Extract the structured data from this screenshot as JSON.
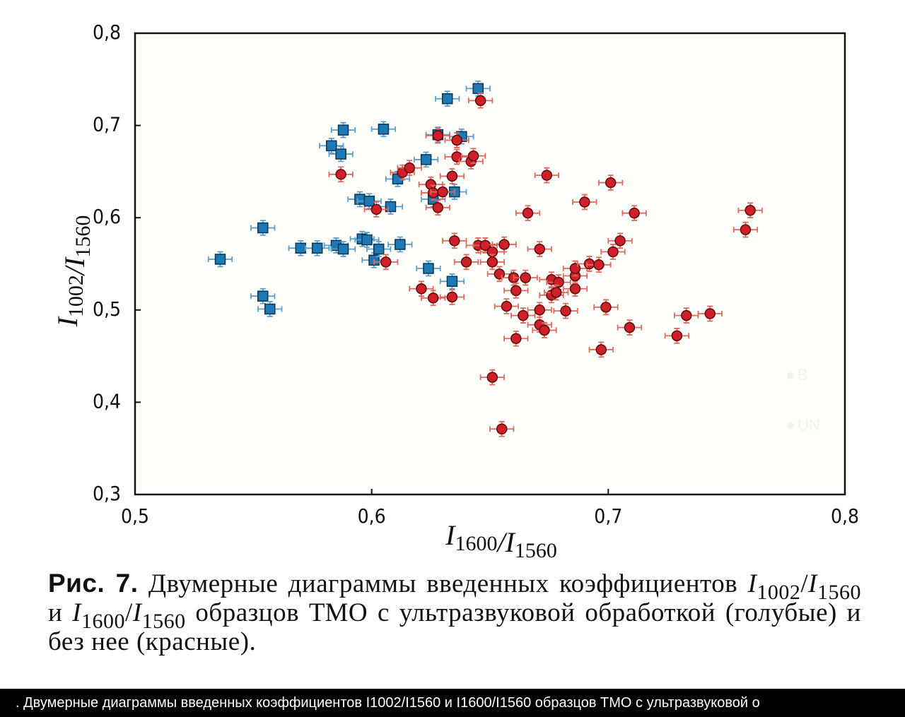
{
  "chart_data": {
    "type": "scatter",
    "xlabel": "I1600/I1560",
    "ylabel": "I1002/I1560",
    "xlim": [
      0.5,
      0.8
    ],
    "ylim": [
      0.3,
      0.8
    ],
    "xticks": [
      {
        "value": 0.5,
        "label": "0,5"
      },
      {
        "value": 0.6,
        "label": "0,6"
      },
      {
        "value": 0.7,
        "label": "0,7"
      },
      {
        "value": 0.8,
        "label": "0,8"
      }
    ],
    "yticks": [
      {
        "value": 0.3,
        "label": "0,3"
      },
      {
        "value": 0.4,
        "label": "0,4"
      },
      {
        "value": 0.5,
        "label": "0,5"
      },
      {
        "value": 0.6,
        "label": "0,6"
      },
      {
        "value": 0.7,
        "label": "0,7"
      },
      {
        "value": 0.8,
        "label": "0,8"
      }
    ],
    "legend": "lower right",
    "series": [
      {
        "name": "B",
        "color": "#1d79b6",
        "marker": "square",
        "x_error": 0.005,
        "y_error": 0.008,
        "x": [
          0.536,
          0.554,
          0.554,
          0.557,
          0.57,
          0.577,
          0.583,
          0.585,
          0.587,
          0.588,
          0.588,
          0.595,
          0.596,
          0.598,
          0.599,
          0.601,
          0.603,
          0.605,
          0.608,
          0.611,
          0.612,
          0.623,
          0.624,
          0.626,
          0.628,
          0.632,
          0.634,
          0.635,
          0.638,
          0.645
        ],
        "y": [
          0.555,
          0.589,
          0.515,
          0.501,
          0.567,
          0.567,
          0.678,
          0.57,
          0.669,
          0.695,
          0.566,
          0.62,
          0.577,
          0.576,
          0.618,
          0.554,
          0.566,
          0.696,
          0.612,
          0.642,
          0.571,
          0.663,
          0.545,
          0.62,
          0.69,
          0.729,
          0.531,
          0.628,
          0.688,
          0.74
        ]
      },
      {
        "name": "UN",
        "color": "#cf1f28",
        "marker": "circle",
        "x_error": 0.005,
        "y_error": 0.008,
        "x": [
          0.587,
          0.602,
          0.606,
          0.613,
          0.616,
          0.621,
          0.625,
          0.626,
          0.626,
          0.628,
          0.63,
          0.628,
          0.634,
          0.634,
          0.635,
          0.636,
          0.636,
          0.64,
          0.642,
          0.643,
          0.646,
          0.645,
          0.648,
          0.651,
          0.651,
          0.651,
          0.654,
          0.655,
          0.656,
          0.657,
          0.66,
          0.661,
          0.661,
          0.664,
          0.665,
          0.666,
          0.671,
          0.671,
          0.671,
          0.673,
          0.674,
          0.676,
          0.676,
          0.679,
          0.678,
          0.682,
          0.686,
          0.686,
          0.686,
          0.69,
          0.692,
          0.696,
          0.697,
          0.699,
          0.701,
          0.702,
          0.705,
          0.709,
          0.711,
          0.729,
          0.733,
          0.743,
          0.758,
          0.76
        ],
        "y": [
          0.647,
          0.609,
          0.552,
          0.649,
          0.654,
          0.523,
          0.636,
          0.627,
          0.513,
          0.611,
          0.628,
          0.689,
          0.645,
          0.514,
          0.575,
          0.666,
          0.684,
          0.552,
          0.661,
          0.667,
          0.727,
          0.57,
          0.57,
          0.563,
          0.552,
          0.427,
          0.539,
          0.371,
          0.571,
          0.504,
          0.535,
          0.521,
          0.469,
          0.494,
          0.535,
          0.605,
          0.566,
          0.5,
          0.484,
          0.478,
          0.646,
          0.533,
          0.516,
          0.53,
          0.519,
          0.499,
          0.523,
          0.537,
          0.545,
          0.617,
          0.55,
          0.549,
          0.457,
          0.503,
          0.638,
          0.563,
          0.575,
          0.481,
          0.605,
          0.472,
          0.494,
          0.496,
          0.587,
          0.608
        ]
      }
    ]
  },
  "caption": {
    "label": "Рис. 7.",
    "text": "Двумерные диаграммы введенных коэффициентов I1002/I1560 и I1600/I1560 образцов ТМО с ультразвуковой обработкой (голубые) и без нее (красные)."
  },
  "banner": ". Двумерные диаграммы введенных коэффициентов I1002/I1560 и I1600/I1560 образцов ТМО с ультразвуковой о"
}
